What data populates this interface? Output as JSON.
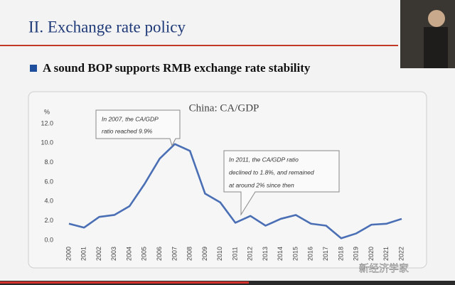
{
  "header": {
    "title": "II. Exchange rate policy",
    "bullet": "A sound BOP supports RMB exchange rate stability"
  },
  "watermark": "新经济学家",
  "chart_data": {
    "type": "line",
    "title": "China: CA/GDP",
    "y_unit": "%",
    "categories": [
      "2000",
      "2001",
      "2002",
      "2003",
      "2004",
      "2005",
      "2006",
      "2007",
      "2008",
      "2009",
      "2010",
      "2011",
      "2012",
      "2013",
      "2014",
      "2015",
      "2016",
      "2017",
      "2018",
      "2019",
      "2020",
      "2021",
      "2022"
    ],
    "values": [
      1.7,
      1.3,
      2.4,
      2.6,
      3.5,
      5.8,
      8.4,
      9.9,
      9.2,
      4.8,
      3.9,
      1.8,
      2.5,
      1.5,
      2.2,
      2.6,
      1.7,
      1.5,
      0.2,
      0.7,
      1.6,
      1.7,
      2.2
    ],
    "color": "#4a6fb5",
    "ylim": [
      0,
      12
    ],
    "yticks": [
      {
        "value": 0,
        "label": "0.0"
      },
      {
        "value": 2,
        "label": "2.0"
      },
      {
        "value": 4,
        "label": "4.0"
      },
      {
        "value": 6,
        "label": "6.0"
      },
      {
        "value": 8,
        "label": "8.0"
      },
      {
        "value": 10,
        "label": "10.0"
      },
      {
        "value": 12,
        "label": "12.0"
      }
    ],
    "grid": false,
    "annotations": [
      {
        "lines": [
          "In 2007, the CA/GDP",
          "ratio reached 9.9%"
        ]
      },
      {
        "lines": [
          "In 2011, the CA/GDP ratio",
          "declined to 1.8%, and remained",
          "at around 2% since then"
        ]
      }
    ]
  }
}
